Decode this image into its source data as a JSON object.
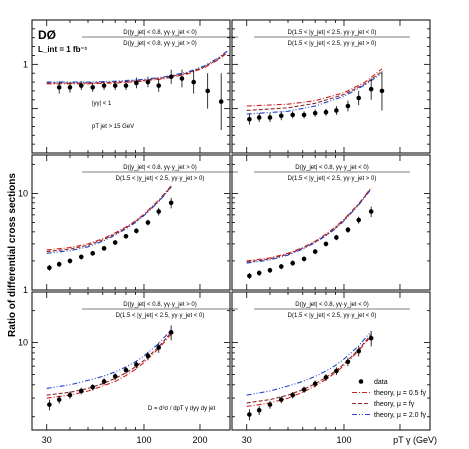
{
  "figure": {
    "experiment": "DØ",
    "luminosity": "L_int = 1 fb⁻¹",
    "ylabel": "Ratio of differential cross sections",
    "xlabel": "pT γ (GeV)",
    "x_ticks": [
      "30",
      "100",
      "200"
    ],
    "cuts": [
      "|yγ| < 1",
      "pT jet > 15 GeV"
    ],
    "formula": "D = d³σ / dpT γ dyγ dy jet"
  },
  "legend": [
    {
      "key": "data",
      "label": "data",
      "style": "marker",
      "color": "#000000"
    },
    {
      "key": "mu05",
      "label": "theory, μ = 0.5 fγ",
      "style": "dashdot",
      "color": "#cc2222"
    },
    {
      "key": "mu1",
      "label": "theory, μ = fγ",
      "style": "dashed",
      "color": "#8a2a2a"
    },
    {
      "key": "mu2",
      "label": "theory, μ = 2.0 fγ",
      "style": "dashdotdot",
      "color": "#2244cc"
    }
  ],
  "chart_data": [
    {
      "type": "scatter",
      "panel": "top-left",
      "num": "D(|y_jet| < 0.8, yγ·y_jet < 0)",
      "den": "D(|y_jet| < 0.8, yγ·y_jet > 0)",
      "xscale": "log",
      "xlim": [
        25,
        290
      ],
      "yscale": "linear",
      "ylim": [
        0,
        1.5
      ],
      "y_ticks": [
        "1"
      ],
      "series": [
        {
          "name": "data",
          "x": [
            35,
            40,
            46,
            53,
            61,
            70,
            80,
            91,
            105,
            120,
            140,
            160,
            185,
            220,
            260
          ],
          "y": [
            0.74,
            0.74,
            0.76,
            0.74,
            0.76,
            0.76,
            0.76,
            0.79,
            0.8,
            0.76,
            0.86,
            0.84,
            0.8,
            0.7,
            0.58
          ],
          "yerr": [
            0.07,
            0.06,
            0.05,
            0.05,
            0.05,
            0.05,
            0.05,
            0.06,
            0.06,
            0.07,
            0.08,
            0.1,
            0.13,
            0.2,
            0.32
          ]
        },
        {
          "name": "theory, μ = 0.5 fγ",
          "x": [
            30,
            50,
            70,
            100,
            130,
            170,
            210,
            250,
            280
          ],
          "y": [
            0.78,
            0.78,
            0.79,
            0.81,
            0.84,
            0.89,
            0.96,
            1.05,
            1.13
          ]
        },
        {
          "name": "theory, μ = fγ",
          "x": [
            30,
            50,
            70,
            100,
            130,
            170,
            210,
            250,
            280
          ],
          "y": [
            0.79,
            0.79,
            0.8,
            0.82,
            0.85,
            0.9,
            0.97,
            1.06,
            1.14
          ]
        },
        {
          "name": "theory, μ = 2.0 fγ",
          "x": [
            30,
            50,
            70,
            100,
            130,
            170,
            210,
            250,
            280
          ],
          "y": [
            0.8,
            0.8,
            0.81,
            0.83,
            0.86,
            0.91,
            0.98,
            1.07,
            1.15
          ]
        }
      ]
    },
    {
      "type": "scatter",
      "panel": "top-right",
      "num": "D(1.5 < |y_jet| < 2.5, yγ·y_jet < 0)",
      "den": "D(1.5 < |y_jet| < 2.5, yγ·y_jet > 0)",
      "xscale": "log",
      "xlim": [
        25,
        290
      ],
      "yscale": "linear",
      "ylim": [
        0,
        1.5
      ],
      "y_ticks": [],
      "series": [
        {
          "name": "data",
          "x": [
            31,
            35,
            40,
            46,
            53,
            61,
            70,
            80,
            91,
            105,
            120,
            140,
            160
          ],
          "y": [
            0.38,
            0.4,
            0.4,
            0.42,
            0.43,
            0.43,
            0.45,
            0.46,
            0.48,
            0.53,
            0.62,
            0.72,
            0.7
          ],
          "yerr": [
            0.06,
            0.05,
            0.05,
            0.05,
            0.04,
            0.04,
            0.04,
            0.04,
            0.05,
            0.06,
            0.08,
            0.12,
            0.22
          ]
        },
        {
          "name": "theory, μ = 0.5 fγ",
          "x": [
            30,
            50,
            70,
            100,
            130,
            160
          ],
          "y": [
            0.53,
            0.55,
            0.59,
            0.68,
            0.8,
            0.95
          ]
        },
        {
          "name": "theory, μ = fγ",
          "x": [
            30,
            50,
            70,
            100,
            130,
            160
          ],
          "y": [
            0.48,
            0.51,
            0.56,
            0.66,
            0.78,
            0.92
          ]
        },
        {
          "name": "theory, μ = 2.0 fγ",
          "x": [
            30,
            50,
            70,
            100,
            130,
            160
          ],
          "y": [
            0.44,
            0.47,
            0.53,
            0.64,
            0.77,
            0.9
          ]
        }
      ]
    },
    {
      "type": "scatter",
      "panel": "middle-left",
      "num": "D(|y_jet| < 0.8, yγ·y_jet > 0)",
      "den": "D(1.5 < |y_jet| < 2.5, yγ·y_jet > 0)",
      "xscale": "log",
      "xlim": [
        25,
        290
      ],
      "yscale": "log",
      "ylim": [
        1,
        25
      ],
      "y_ticks": [
        "1",
        "10"
      ],
      "series": [
        {
          "name": "data",
          "x": [
            31,
            35,
            40,
            46,
            53,
            61,
            70,
            80,
            91,
            105,
            120,
            140
          ],
          "y": [
            1.7,
            1.85,
            2.0,
            2.2,
            2.4,
            2.7,
            3.1,
            3.6,
            4.1,
            5.0,
            6.5,
            8.0
          ],
          "yerr": [
            0.12,
            0.12,
            0.12,
            0.13,
            0.14,
            0.15,
            0.18,
            0.2,
            0.25,
            0.35,
            0.6,
            1.0
          ]
        },
        {
          "name": "theory, μ = 0.5 fγ",
          "x": [
            30,
            40,
            50,
            60,
            70,
            80,
            90,
            100,
            120,
            140
          ],
          "y": [
            2.6,
            2.75,
            3.0,
            3.4,
            3.9,
            4.5,
            5.2,
            6.1,
            8.5,
            12.0
          ]
        },
        {
          "name": "theory, μ = fγ",
          "x": [
            30,
            40,
            50,
            60,
            70,
            80,
            90,
            100,
            120,
            140
          ],
          "y": [
            2.5,
            2.65,
            2.9,
            3.3,
            3.8,
            4.4,
            5.1,
            6.0,
            8.3,
            11.8
          ]
        },
        {
          "name": "theory, μ = 2.0 fγ",
          "x": [
            30,
            40,
            50,
            60,
            70,
            80,
            90,
            100,
            120,
            140
          ],
          "y": [
            2.4,
            2.55,
            2.8,
            3.2,
            3.7,
            4.3,
            5.0,
            5.9,
            8.2,
            11.6
          ]
        }
      ]
    },
    {
      "type": "scatter",
      "panel": "middle-right",
      "num": "D(|y_jet| < 0.8, yγ·y_jet < 0)",
      "den": "D(1.5 < |y_jet| < 2.5, yγ·y_jet > 0)",
      "xscale": "log",
      "xlim": [
        25,
        290
      ],
      "yscale": "log",
      "ylim": [
        1,
        25
      ],
      "y_ticks": [],
      "series": [
        {
          "name": "data",
          "x": [
            31,
            35,
            40,
            46,
            53,
            61,
            70,
            80,
            91,
            105,
            120,
            140
          ],
          "y": [
            1.4,
            1.5,
            1.6,
            1.75,
            1.9,
            2.1,
            2.5,
            3.0,
            3.5,
            4.2,
            5.3,
            6.5
          ],
          "yerr": [
            0.1,
            0.1,
            0.1,
            0.11,
            0.12,
            0.13,
            0.15,
            0.18,
            0.22,
            0.3,
            0.45,
            0.8
          ]
        },
        {
          "name": "theory, μ = 0.5 fγ",
          "x": [
            30,
            40,
            50,
            60,
            70,
            80,
            90,
            100,
            120,
            140
          ],
          "y": [
            2.0,
            2.15,
            2.4,
            2.75,
            3.2,
            3.8,
            4.5,
            5.4,
            7.8,
            11.5
          ]
        },
        {
          "name": "theory, μ = fγ",
          "x": [
            30,
            40,
            50,
            60,
            70,
            80,
            90,
            100,
            120,
            140
          ],
          "y": [
            1.95,
            2.1,
            2.35,
            2.7,
            3.15,
            3.7,
            4.4,
            5.3,
            7.7,
            11.3
          ]
        },
        {
          "name": "theory, μ = 2.0 fγ",
          "x": [
            30,
            40,
            50,
            60,
            70,
            80,
            90,
            100,
            120,
            140
          ],
          "y": [
            1.9,
            2.05,
            2.3,
            2.65,
            3.1,
            3.65,
            4.3,
            5.2,
            7.6,
            11.1
          ]
        }
      ]
    },
    {
      "type": "scatter",
      "panel": "bottom-left",
      "num": "D(|y_jet| < 0.8, yγ·y_jet > 0)",
      "den": "D(1.5 < |y_jet| < 2.5, yγ·y_jet < 0)",
      "xscale": "log",
      "xlim": [
        25,
        290
      ],
      "yscale": "log",
      "ylim": [
        1.5,
        30
      ],
      "y_ticks": [
        "10"
      ],
      "series": [
        {
          "name": "data",
          "x": [
            31,
            35,
            40,
            46,
            53,
            61,
            70,
            80,
            91,
            105,
            120,
            140
          ],
          "y": [
            2.6,
            2.9,
            3.2,
            3.5,
            3.8,
            4.3,
            4.8,
            5.5,
            6.2,
            7.5,
            9.0,
            12.5
          ],
          "yerr": [
            0.3,
            0.25,
            0.25,
            0.25,
            0.25,
            0.3,
            0.35,
            0.4,
            0.5,
            0.7,
            1.0,
            2.0
          ]
        },
        {
          "name": "theory, μ = 0.5 fγ",
          "x": [
            30,
            40,
            50,
            60,
            70,
            80,
            90,
            100,
            120,
            140
          ],
          "y": [
            3.0,
            3.2,
            3.5,
            3.9,
            4.3,
            4.9,
            5.6,
            6.5,
            8.8,
            12.0
          ]
        },
        {
          "name": "theory, μ = fγ",
          "x": [
            30,
            40,
            50,
            60,
            70,
            80,
            90,
            100,
            120,
            140
          ],
          "y": [
            3.2,
            3.4,
            3.7,
            4.1,
            4.6,
            5.2,
            5.9,
            6.8,
            9.1,
            12.5
          ]
        },
        {
          "name": "theory, μ = 2.0 fγ",
          "x": [
            30,
            40,
            50,
            60,
            70,
            80,
            90,
            100,
            120,
            140
          ],
          "y": [
            3.7,
            4.0,
            4.4,
            4.8,
            5.3,
            5.9,
            6.6,
            7.5,
            9.8,
            13.2
          ]
        }
      ]
    },
    {
      "type": "scatter",
      "panel": "bottom-right",
      "num": "D(|y_jet| < 0.8, yγ·y_jet < 0)",
      "den": "D(1.5 < |y_jet| < 2.5, yγ·y_jet < 0)",
      "xscale": "log",
      "xlim": [
        25,
        290
      ],
      "yscale": "log",
      "ylim": [
        1.5,
        30
      ],
      "y_ticks": [],
      "series": [
        {
          "name": "data",
          "x": [
            31,
            35,
            40,
            46,
            53,
            61,
            70,
            80,
            91,
            105,
            120,
            140
          ],
          "y": [
            2.1,
            2.3,
            2.6,
            2.9,
            3.2,
            3.6,
            4.1,
            4.7,
            5.4,
            6.6,
            8.3,
            11.0
          ],
          "yerr": [
            0.25,
            0.22,
            0.22,
            0.22,
            0.22,
            0.25,
            0.3,
            0.35,
            0.45,
            0.6,
            0.9,
            1.8
          ]
        },
        {
          "name": "theory, μ = 0.5 fγ",
          "x": [
            30,
            40,
            50,
            60,
            70,
            80,
            90,
            100,
            120,
            140
          ],
          "y": [
            2.5,
            2.7,
            3.0,
            3.4,
            3.9,
            4.5,
            5.2,
            6.1,
            8.4,
            11.5
          ]
        },
        {
          "name": "theory, μ = fγ",
          "x": [
            30,
            40,
            50,
            60,
            70,
            80,
            90,
            100,
            120,
            140
          ],
          "y": [
            2.7,
            2.9,
            3.2,
            3.6,
            4.1,
            4.7,
            5.4,
            6.3,
            8.6,
            12.0
          ]
        },
        {
          "name": "theory, μ = 2.0 fγ",
          "x": [
            30,
            40,
            50,
            60,
            70,
            80,
            90,
            100,
            120,
            140
          ],
          "y": [
            3.2,
            3.5,
            3.9,
            4.3,
            4.8,
            5.4,
            6.1,
            7.0,
            9.3,
            12.8
          ]
        }
      ]
    }
  ]
}
